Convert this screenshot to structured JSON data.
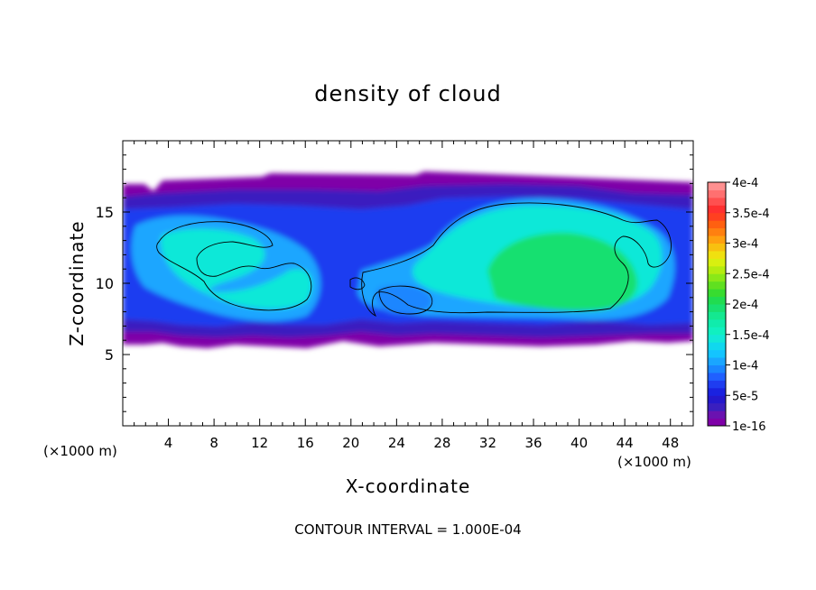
{
  "chart_data": {
    "type": "heatmap",
    "title": "density of cloud",
    "xlabel": "X-coordinate",
    "ylabel": "Z-coordinate",
    "x_unit_left": "(×1000 m)",
    "x_unit_right": "(×1000 m)",
    "xlim": [
      0,
      50
    ],
    "ylim": [
      0,
      20
    ],
    "x_ticks": [
      4,
      8,
      12,
      16,
      20,
      24,
      28,
      32,
      36,
      40,
      44,
      48
    ],
    "y_ticks": [
      5,
      10,
      15
    ],
    "footer": "CONTOUR INTERVAL = 1.000E-04",
    "colorbar": {
      "labels": [
        "1e-16",
        "5e-5",
        "1e-4",
        "1.5e-4",
        "2e-4",
        "2.5e-4",
        "3e-4",
        "3.5e-4",
        "4e-4"
      ],
      "levels": [
        0,
        1.25e-05,
        2.5e-05,
        3.75e-05,
        5e-05,
        6.25e-05,
        7.5e-05,
        8.75e-05,
        0.0001,
        0.0001125,
        0.000125,
        0.0001375,
        0.00015,
        0.0001625,
        0.000175,
        0.0001875,
        0.0002,
        0.0002125,
        0.000225,
        0.0002375,
        0.00025,
        0.0002625,
        0.000275,
        0.0002875,
        0.0003,
        0.0003125,
        0.000325,
        0.0003375,
        0.00035,
        0.0003625,
        0.000375,
        0.0003875,
        0.0004
      ],
      "colors": [
        "#7f00a8",
        "#6a12b0",
        "#3a1fbf",
        "#2418cc",
        "#1a22e0",
        "#1f3df0",
        "#2060ff",
        "#1a86ff",
        "#1aa6ff",
        "#14c4ff",
        "#10d8ee",
        "#12e8d8",
        "#10f0c0",
        "#10ecac",
        "#14e890",
        "#18e070",
        "#20dc50",
        "#38dc30",
        "#60e020",
        "#8ae818",
        "#b4ec10",
        "#d8f010",
        "#f0e010",
        "#f8c010",
        "#ffa010",
        "#ff8010",
        "#ff6010",
        "#ff4020",
        "#ff3030",
        "#ff5050",
        "#ff7070",
        "#ff9090"
      ]
    },
    "regions": [
      {
        "level": "1e-16",
        "x_range": [
          0,
          50
        ],
        "z_range": [
          6,
          17
        ]
      },
      {
        "level": "5e-5",
        "x_range": [
          0,
          50
        ],
        "z_range": [
          7,
          16
        ]
      },
      {
        "level": "1e-4",
        "x_range": [
          2.5,
          16
        ],
        "z_range": [
          8.5,
          14
        ]
      },
      {
        "level": "1e-4",
        "x_range": [
          27,
          49
        ],
        "z_range": [
          8,
          16
        ]
      },
      {
        "level": "1.5e-4",
        "x_range": [
          31,
          43
        ],
        "z_range": [
          9,
          14
        ]
      }
    ]
  }
}
